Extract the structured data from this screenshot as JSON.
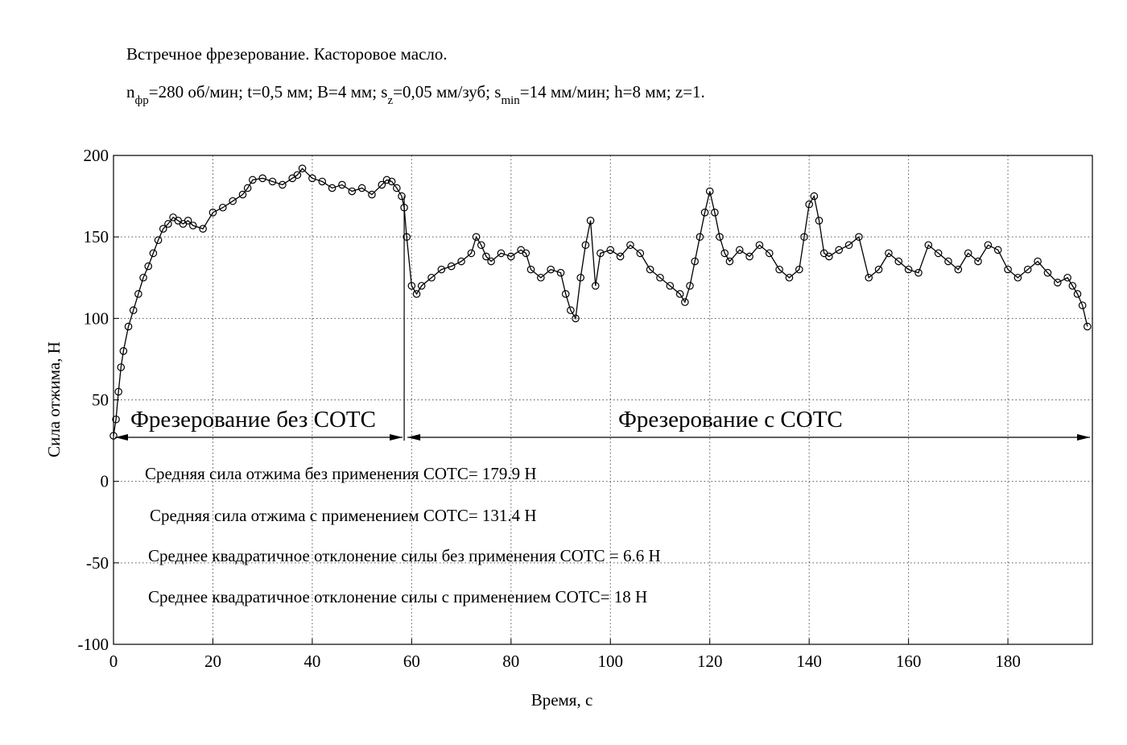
{
  "header": {
    "line1": "Встречное фрезерование. Касторовое масло.",
    "params": [
      {
        "text": "n"
      },
      {
        "sub": "фр"
      },
      {
        "text": "=280 об/мин; t=0,5 мм; B=4 мм; s"
      },
      {
        "sub": "z"
      },
      {
        "text": "=0,05 мм/зуб; s"
      },
      {
        "sub": "min"
      },
      {
        "text": "=14 мм/мин; h=8 мм; z=1."
      }
    ]
  },
  "chart_data": {
    "type": "line",
    "xlabel": "Время, с",
    "ylabel": "Сила отжима, Н",
    "xlim": [
      0,
      197
    ],
    "ylim": [
      -100,
      200
    ],
    "xticks": [
      0,
      20,
      40,
      60,
      80,
      100,
      120,
      140,
      160,
      180
    ],
    "yticks": [
      -100,
      -50,
      0,
      50,
      100,
      150,
      200
    ],
    "grid": true,
    "marker": "circle",
    "series": [
      {
        "name": "",
        "x": [
          0,
          0.5,
          1,
          1.5,
          2,
          3,
          4,
          5,
          6,
          7,
          8,
          9,
          10,
          11,
          12,
          13,
          14,
          15,
          16,
          18,
          20,
          22,
          24,
          26,
          27,
          28,
          30,
          32,
          34,
          36,
          37,
          38,
          40,
          42,
          44,
          46,
          48,
          50,
          52,
          54,
          55,
          56,
          57,
          58,
          58.5,
          59,
          60,
          61,
          62,
          64,
          66,
          68,
          70,
          72,
          73,
          74,
          75,
          76,
          78,
          80,
          82,
          83,
          84,
          86,
          88,
          90,
          91,
          92,
          93,
          94,
          95,
          96,
          97,
          98,
          100,
          102,
          104,
          106,
          108,
          110,
          112,
          114,
          115,
          116,
          117,
          118,
          119,
          120,
          121,
          122,
          123,
          124,
          126,
          128,
          130,
          132,
          134,
          136,
          138,
          139,
          140,
          141,
          142,
          143,
          144,
          146,
          148,
          150,
          152,
          154,
          156,
          158,
          160,
          162,
          164,
          166,
          168,
          170,
          172,
          174,
          176,
          178,
          180,
          182,
          184,
          186,
          188,
          190,
          192,
          193,
          194,
          195,
          196
        ],
        "y": [
          28,
          38,
          55,
          70,
          80,
          95,
          105,
          115,
          125,
          132,
          140,
          148,
          155,
          158,
          162,
          160,
          158,
          160,
          157,
          155,
          165,
          168,
          172,
          176,
          180,
          185,
          186,
          184,
          182,
          186,
          188,
          192,
          186,
          184,
          180,
          182,
          178,
          180,
          176,
          182,
          185,
          184,
          180,
          175,
          168,
          150,
          120,
          115,
          120,
          125,
          130,
          132,
          135,
          140,
          150,
          145,
          138,
          135,
          140,
          138,
          142,
          140,
          130,
          125,
          130,
          128,
          115,
          105,
          100,
          125,
          145,
          160,
          120,
          140,
          142,
          138,
          145,
          140,
          130,
          125,
          120,
          115,
          110,
          120,
          135,
          150,
          165,
          178,
          165,
          150,
          140,
          135,
          142,
          138,
          145,
          140,
          130,
          125,
          130,
          150,
          170,
          175,
          160,
          140,
          138,
          142,
          145,
          150,
          125,
          130,
          140,
          135,
          130,
          128,
          145,
          140,
          135,
          130,
          140,
          135,
          145,
          142,
          130,
          125,
          130,
          135,
          128,
          122,
          125,
          120,
          115,
          108,
          95
        ]
      }
    ],
    "divider_x": 58.5,
    "annotations": {
      "region1": "Фрезерование без СОТС",
      "region2": "Фрезерование с СОТС",
      "stat1": "Средняя сила отжима без применения СОТС= 179.9 Н",
      "stat2": "Средняя сила отжима с применением СОТС= 131.4 Н",
      "stat3": "Среднее квадратичное отклонение силы без применения СОТС = 6.6 Н",
      "stat4": "Среднее квадратичное отклонение силы с применением СОТС= 18 Н"
    }
  }
}
